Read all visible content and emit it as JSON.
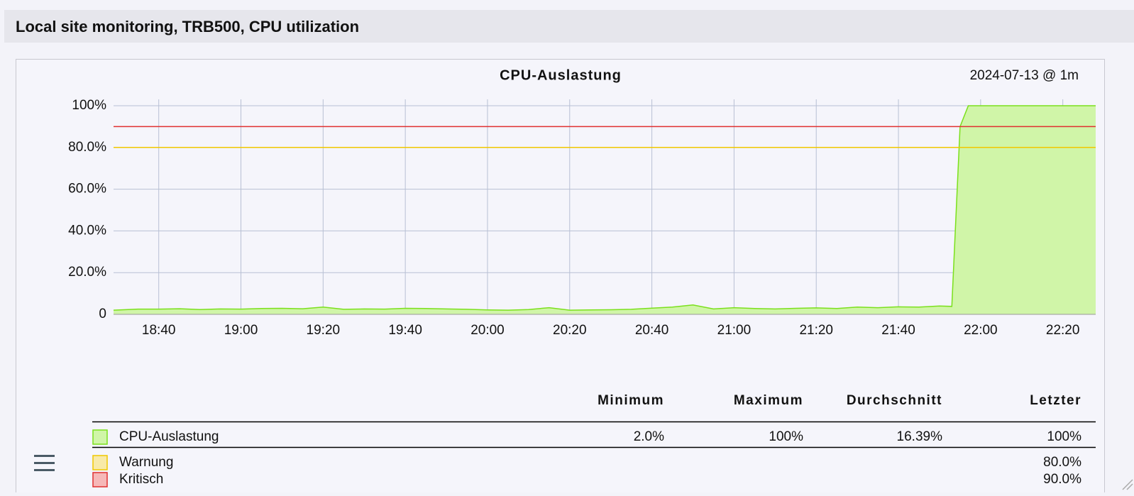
{
  "header": {
    "title": "Local site monitoring, TRB500, CPU utilization"
  },
  "chart_data": {
    "type": "area",
    "title": "CPU-Auslastung",
    "subtitle": "2024-07-13 @ 1m",
    "x": [
      "18:29",
      "18:35",
      "18:40",
      "18:45",
      "18:50",
      "18:55",
      "19:00",
      "19:05",
      "19:10",
      "19:15",
      "19:20",
      "19:25",
      "19:30",
      "19:35",
      "19:40",
      "19:45",
      "19:50",
      "19:55",
      "20:00",
      "20:05",
      "20:10",
      "20:15",
      "20:20",
      "20:25",
      "20:30",
      "20:35",
      "20:40",
      "20:45",
      "20:50",
      "20:55",
      "21:00",
      "21:05",
      "21:10",
      "21:15",
      "21:20",
      "21:25",
      "21:30",
      "21:35",
      "21:40",
      "21:45",
      "21:50",
      "21:53",
      "21:55",
      "21:57",
      "22:00",
      "22:10",
      "22:20",
      "22:28"
    ],
    "series": [
      {
        "name": "CPU-Auslastung",
        "color": "#7be01c",
        "fill": "#d0f5a8",
        "values": [
          2.0,
          2.5,
          2.5,
          2.7,
          2.3,
          2.6,
          2.5,
          2.8,
          2.9,
          2.7,
          3.5,
          2.4,
          2.6,
          2.5,
          2.9,
          2.8,
          2.6,
          2.4,
          2.1,
          2.0,
          2.3,
          3.2,
          2.0,
          2.1,
          2.2,
          2.4,
          3.0,
          3.5,
          4.5,
          2.6,
          3.2,
          2.8,
          2.6,
          2.9,
          3.1,
          2.8,
          3.5,
          3.2,
          3.6,
          3.5,
          4.0,
          3.8,
          90,
          100,
          100,
          100,
          100,
          100
        ]
      }
    ],
    "thresholds": [
      {
        "name": "Warnung",
        "color": "#f0c800",
        "swatch": "#f8eaa8",
        "value": 80,
        "value_label": "80.0%"
      },
      {
        "name": "Kritisch",
        "color": "#e03030",
        "swatch": "#f6b8b8",
        "value": 90,
        "value_label": "90.0%"
      }
    ],
    "xlim": [
      "18:29",
      "22:28"
    ],
    "xticks": [
      "18:40",
      "19:00",
      "19:20",
      "19:40",
      "20:00",
      "20:20",
      "20:40",
      "21:00",
      "21:20",
      "21:40",
      "22:00",
      "22:20"
    ],
    "ylim": [
      0,
      100
    ],
    "yticks": [
      0,
      {
        "value": 20,
        "label": "20.0%"
      },
      {
        "value": 40,
        "label": "40.0%"
      },
      {
        "value": 60,
        "label": "60.0%"
      },
      {
        "value": 80,
        "label": "80.0%"
      },
      {
        "value": 100,
        "label": "100%"
      }
    ],
    "grid": true
  },
  "legend": {
    "columns": [
      "Minimum",
      "Maximum",
      "Durchschnitt",
      "Letzter"
    ],
    "rows": [
      [
        "2.0%",
        "100%",
        "16.39%",
        "100%"
      ]
    ]
  }
}
